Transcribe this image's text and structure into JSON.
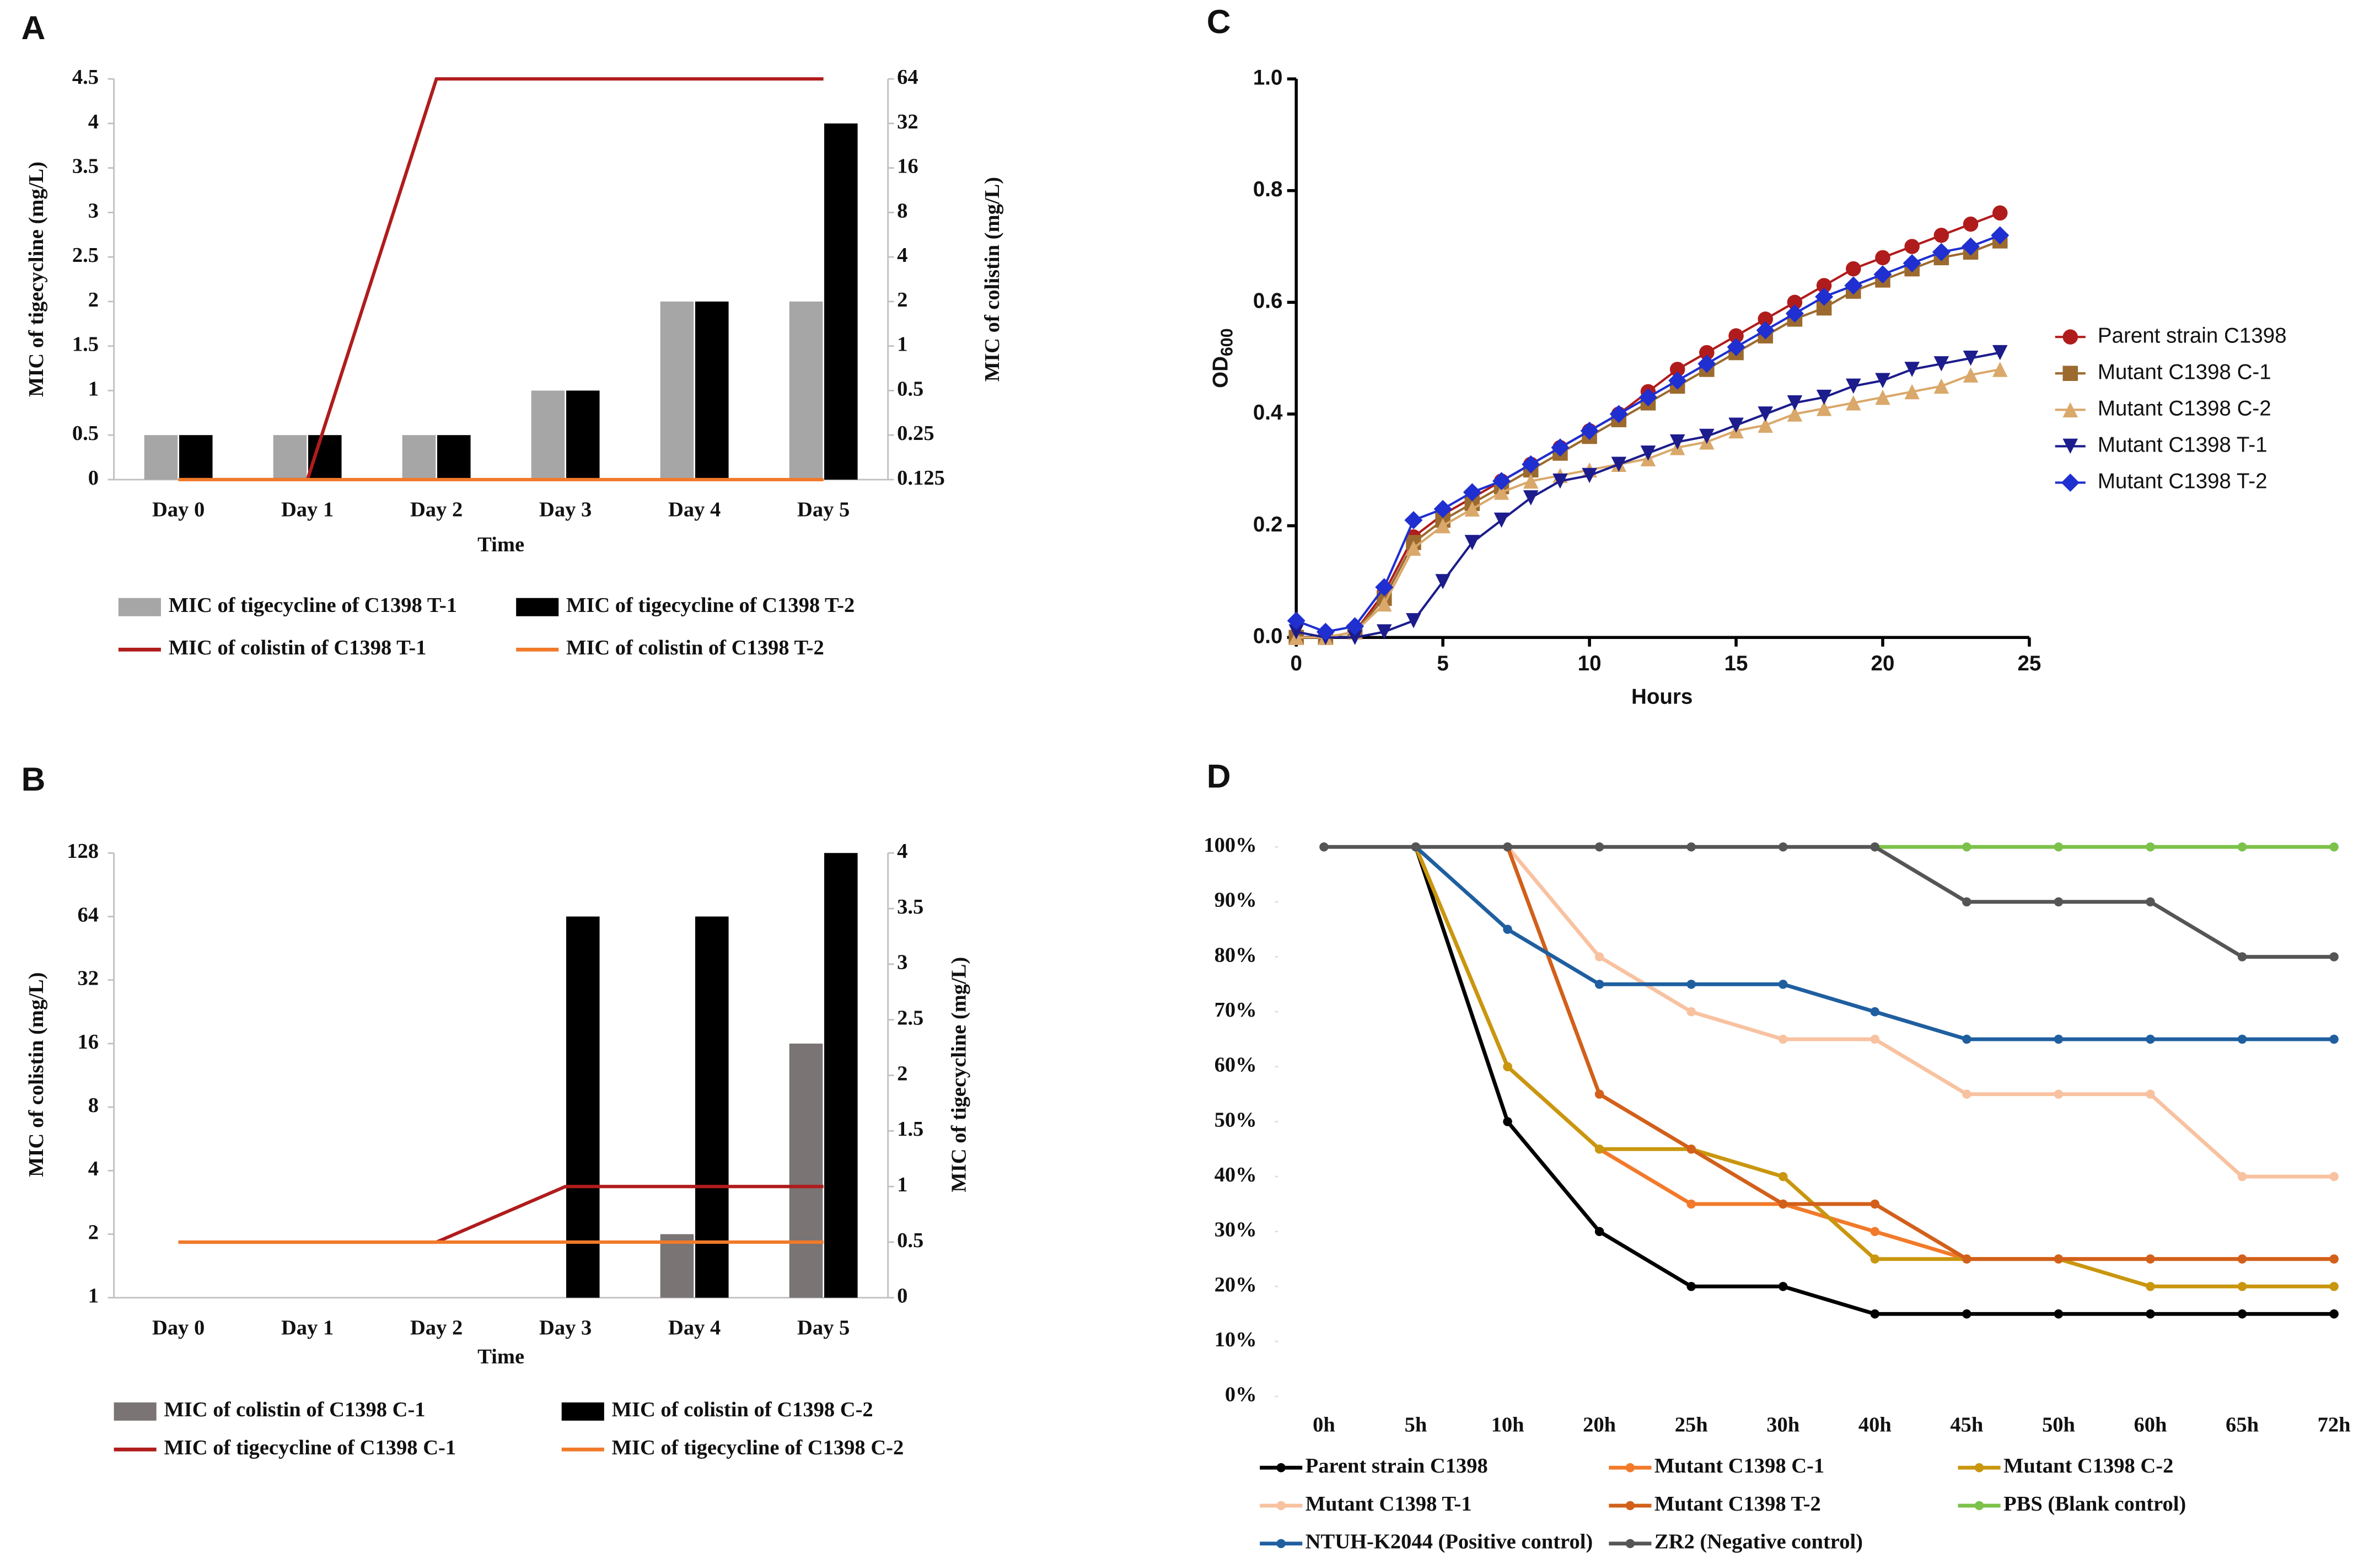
{
  "chart_data": [
    {
      "type": "bar",
      "panel_label": "A",
      "xlabel": "Time",
      "ylabel": "MIC of tigecycline (mg/L)",
      "y2label": "MIC of colistin (mg/L)",
      "categories": [
        "Day 0",
        "Day 1",
        "Day 2",
        "Day 3",
        "Day 4",
        "Day 5"
      ],
      "ylim": [
        0,
        4.5
      ],
      "yticks": [
        0,
        0.5,
        1,
        1.5,
        2,
        2.5,
        3,
        3.5,
        4,
        4.5
      ],
      "y2lim": [
        0.125,
        64
      ],
      "y2ticks": [
        0.125,
        0.25,
        0.5,
        1,
        2,
        4,
        8,
        16,
        32,
        64
      ],
      "y2log": true,
      "series": [
        {
          "name": "MIC of tigecycline of C1398 T-1",
          "type": "bar",
          "color": "#a6a6a6",
          "values": [
            0.5,
            0.5,
            0.5,
            1,
            2,
            2
          ]
        },
        {
          "name": "MIC of tigecycline of C1398 T-2",
          "type": "bar",
          "color": "#000000",
          "values": [
            0.5,
            0.5,
            0.5,
            1,
            2,
            4
          ]
        },
        {
          "name": "MIC of colistin of C1398 T-1",
          "type": "line",
          "axis": "y2",
          "color": "#b01c1c",
          "values": [
            0.125,
            0.125,
            64,
            64,
            64,
            64
          ]
        },
        {
          "name": "MIC of colistin of C1398 T-2",
          "type": "line",
          "axis": "y2",
          "color": "#f07a2a",
          "values": [
            0.125,
            0.125,
            0.125,
            0.125,
            0.125,
            0.125
          ]
        }
      ]
    },
    {
      "type": "bar",
      "panel_label": "B",
      "xlabel": "Time",
      "ylabel": "MIC of colistin (mg/L)",
      "y2label": "MIC of tigecycline (mg/L)",
      "categories": [
        "Day 0",
        "Day 1",
        "Day 2",
        "Day 3",
        "Day 4",
        "Day 5"
      ],
      "ylim": [
        1,
        128
      ],
      "yticks": [
        1,
        2,
        4,
        8,
        16,
        32,
        64,
        128
      ],
      "ylog": true,
      "y2lim": [
        0,
        4
      ],
      "y2ticks": [
        0,
        0.5,
        1,
        1.5,
        2,
        2.5,
        3,
        3.5,
        4
      ],
      "series": [
        {
          "name": "MIC of colistin of C1398 C-1",
          "type": "bar",
          "color": "#7a7474",
          "values": [
            1,
            1,
            1,
            1,
            2,
            16
          ]
        },
        {
          "name": "MIC of colistin of C1398 C-2",
          "type": "bar",
          "color": "#000000",
          "values": [
            1,
            1,
            1,
            64,
            64,
            128
          ]
        },
        {
          "name": "MIC of tigecycline of C1398 C-1",
          "type": "line",
          "axis": "y2",
          "color": "#b01c1c",
          "values": [
            0.5,
            0.5,
            0.5,
            1,
            1,
            1
          ]
        },
        {
          "name": "MIC of tigecycline of C1398 C-2",
          "type": "line",
          "axis": "y2",
          "color": "#f07a2a",
          "values": [
            0.5,
            0.5,
            0.5,
            0.5,
            0.5,
            0.5
          ]
        }
      ]
    },
    {
      "type": "scatter",
      "panel_label": "C",
      "xlabel": "Hours",
      "ylabel": "OD",
      "ylabel_subscript": "600",
      "x": [
        0,
        1,
        2,
        3,
        4,
        5,
        6,
        7,
        8,
        9,
        10,
        11,
        12,
        13,
        14,
        15,
        16,
        17,
        18,
        19,
        20,
        21,
        22,
        23,
        24
      ],
      "xlim": [
        0,
        25
      ],
      "xticks": [
        0,
        5,
        10,
        15,
        20,
        25
      ],
      "ylim": [
        0,
        1
      ],
      "yticks": [
        {
          "value": 0,
          "label": "0.0"
        },
        0.2,
        0.4,
        0.6,
        0.8,
        {
          "value": 1,
          "label": "1.0"
        }
      ],
      "series": [
        {
          "name": "Parent strain C1398",
          "color": "#b01c1c",
          "marker": "circle",
          "values": [
            0,
            0,
            0.01,
            0.08,
            0.18,
            0.22,
            0.25,
            0.28,
            0.31,
            0.34,
            0.37,
            0.4,
            0.44,
            0.48,
            0.51,
            0.54,
            0.57,
            0.6,
            0.63,
            0.66,
            0.68,
            0.7,
            0.72,
            0.74,
            0.76
          ]
        },
        {
          "name": "Mutant C1398 C-1",
          "color": "#9c6a2e",
          "marker": "square",
          "values": [
            0,
            0,
            0.01,
            0.07,
            0.17,
            0.21,
            0.24,
            0.27,
            0.3,
            0.33,
            0.36,
            0.39,
            0.42,
            0.45,
            0.48,
            0.51,
            0.54,
            0.57,
            0.59,
            0.62,
            0.64,
            0.66,
            0.68,
            0.69,
            0.71
          ]
        },
        {
          "name": "Mutant C1398 C-2",
          "color": "#d9a86a",
          "marker": "triangle-up",
          "values": [
            0,
            0,
            0.01,
            0.06,
            0.16,
            0.2,
            0.23,
            0.26,
            0.28,
            0.29,
            0.3,
            0.31,
            0.32,
            0.34,
            0.35,
            0.37,
            0.38,
            0.4,
            0.41,
            0.42,
            0.43,
            0.44,
            0.45,
            0.47,
            0.48
          ]
        },
        {
          "name": "Mutant C1398 T-1",
          "color": "#1c1c8c",
          "marker": "triangle-down",
          "values": [
            0.01,
            0,
            0,
            0.01,
            0.03,
            0.1,
            0.17,
            0.21,
            0.25,
            0.28,
            0.29,
            0.31,
            0.33,
            0.35,
            0.36,
            0.38,
            0.4,
            0.42,
            0.43,
            0.45,
            0.46,
            0.48,
            0.49,
            0.5,
            0.51
          ]
        },
        {
          "name": "Mutant C1398 T-2",
          "color": "#1f2fd0",
          "marker": "diamond",
          "values": [
            0.03,
            0.01,
            0.02,
            0.09,
            0.21,
            0.23,
            0.26,
            0.28,
            0.31,
            0.34,
            0.37,
            0.4,
            0.43,
            0.46,
            0.49,
            0.52,
            0.55,
            0.58,
            0.61,
            0.63,
            0.65,
            0.67,
            0.69,
            0.7,
            0.72
          ]
        }
      ]
    },
    {
      "type": "line",
      "panel_label": "D",
      "categories": [
        "0h",
        "5h",
        "10h",
        "20h",
        "25h",
        "30h",
        "40h",
        "45h",
        "50h",
        "60h",
        "65h",
        "72h"
      ],
      "ylim": [
        0,
        100
      ],
      "yticks": [
        {
          "value": 0,
          "label": "0%"
        },
        {
          "value": 10,
          "label": "10%"
        },
        {
          "value": 20,
          "label": "20%"
        },
        {
          "value": 30,
          "label": "30%"
        },
        {
          "value": 40,
          "label": "40%"
        },
        {
          "value": 50,
          "label": "50%"
        },
        {
          "value": 60,
          "label": "60%"
        },
        {
          "value": 70,
          "label": "70%"
        },
        {
          "value": 80,
          "label": "80%"
        },
        {
          "value": 90,
          "label": "90%"
        },
        {
          "value": 100,
          "label": "100%"
        }
      ],
      "series": [
        {
          "name": "Parent strain C1398",
          "color": "#000000",
          "values": [
            null,
            100,
            50,
            30,
            20,
            20,
            15,
            15,
            15,
            15,
            15,
            15
          ]
        },
        {
          "name": "Mutant C1398 C-1",
          "color": "#f27a2a",
          "values": [
            null,
            100,
            60,
            45,
            35,
            35,
            30,
            25,
            25,
            25,
            25,
            25
          ]
        },
        {
          "name": "Mutant C1398 C-2",
          "color": "#c9960e",
          "values": [
            null,
            100,
            60,
            45,
            45,
            40,
            25,
            25,
            25,
            20,
            20,
            20
          ]
        },
        {
          "name": "Mutant C1398 T-1",
          "color": "#f8c2a0",
          "values": [
            null,
            null,
            100,
            80,
            70,
            65,
            65,
            55,
            55,
            55,
            40,
            40
          ]
        },
        {
          "name": "Mutant C1398 T-2",
          "color": "#d2601a",
          "values": [
            null,
            null,
            100,
            55,
            45,
            35,
            35,
            25,
            25,
            25,
            25,
            25
          ]
        },
        {
          "name": "PBS (Blank control)",
          "color": "#7cc24a",
          "values": [
            null,
            null,
            null,
            null,
            null,
            null,
            100,
            100,
            100,
            100,
            100,
            100
          ]
        },
        {
          "name": "NTUH-K2044 (Positive control)",
          "color": "#1f5fa0",
          "values": [
            null,
            100,
            85,
            75,
            75,
            75,
            70,
            65,
            65,
            65,
            65,
            65
          ]
        },
        {
          "name": "ZR2 (Negative control)",
          "color": "#555555",
          "values": [
            100,
            100,
            100,
            100,
            100,
            100,
            100,
            90,
            90,
            90,
            80,
            80
          ]
        }
      ]
    }
  ]
}
